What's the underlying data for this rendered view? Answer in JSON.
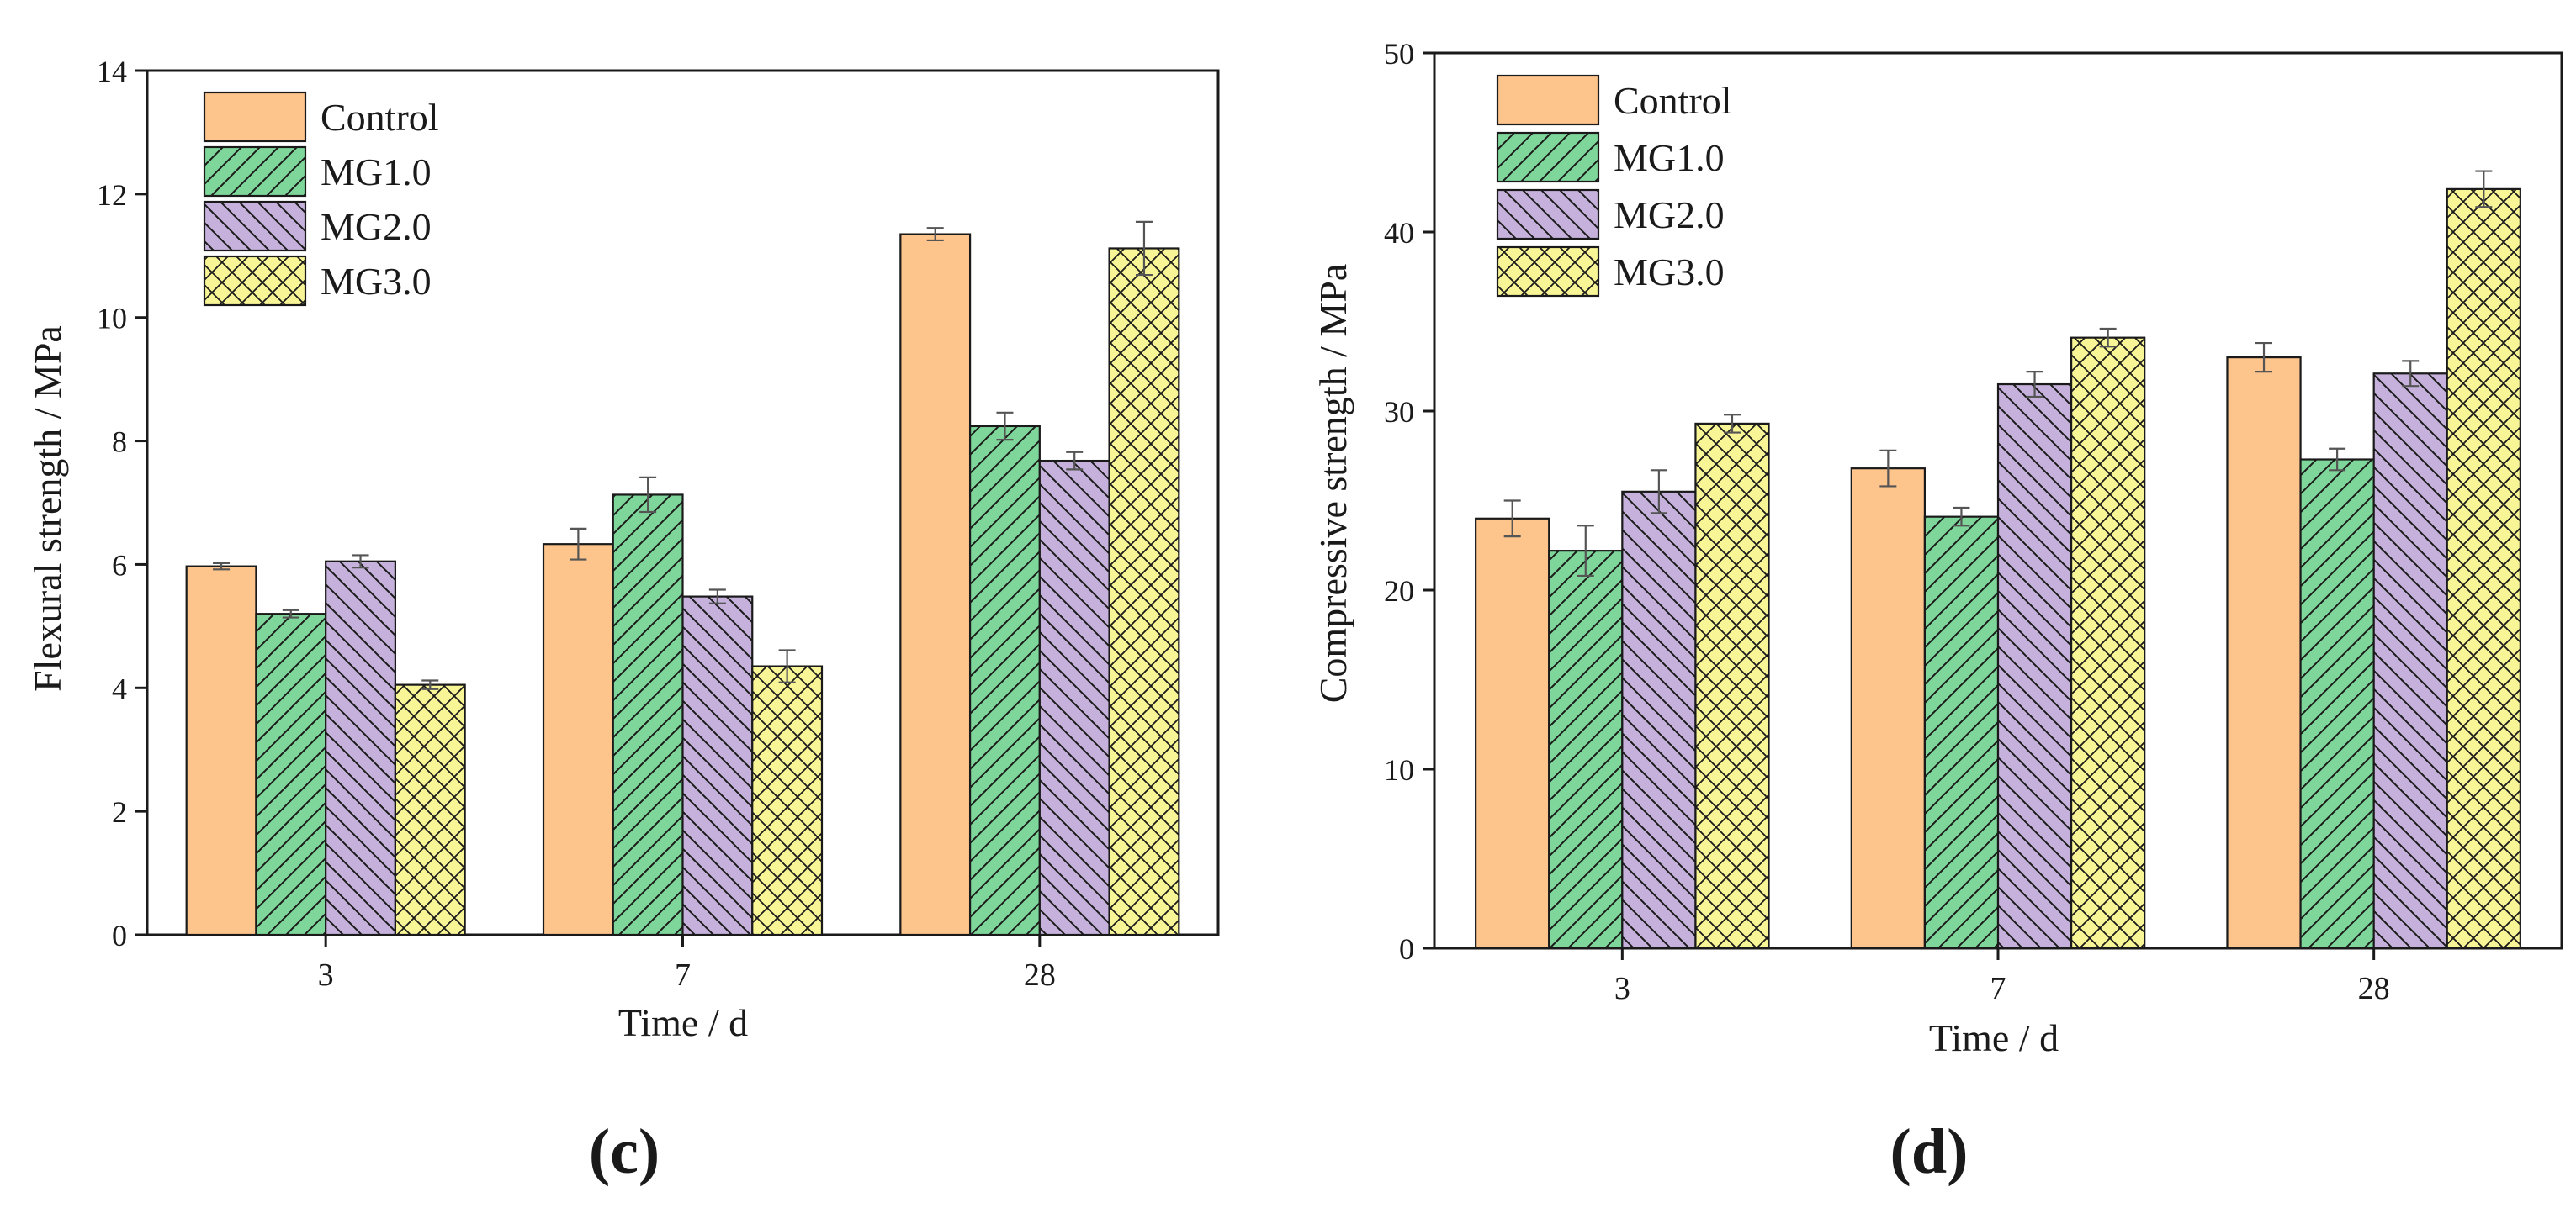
{
  "colors": {
    "Control": "#FDC48C",
    "MG1.0": "#7ED69A",
    "MG2.0": "#C5B1DB",
    "MG3.0": "#F8F596",
    "axis": "#1a1a1a",
    "errorbar": "#555555"
  },
  "chart_data": [
    {
      "type": "bar",
      "panel_label": "(c)",
      "title": "",
      "xlabel": "Time / d",
      "ylabel": "Flexural strength / MPa",
      "categories": [
        "3",
        "7",
        "28"
      ],
      "ylim": [
        0,
        14
      ],
      "yticks": [
        0,
        2,
        4,
        6,
        8,
        10,
        12,
        14
      ],
      "legend_position": "top-left",
      "series": [
        {
          "name": "Control",
          "pattern": "solid",
          "values": [
            5.97,
            6.33,
            11.35
          ],
          "errors": [
            0.05,
            0.25,
            0.1
          ]
        },
        {
          "name": "MG1.0",
          "pattern": "diag-right",
          "values": [
            5.2,
            7.13,
            8.24
          ],
          "errors": [
            0.06,
            0.28,
            0.22
          ]
        },
        {
          "name": "MG2.0",
          "pattern": "diag-left",
          "values": [
            6.05,
            5.48,
            7.68
          ],
          "errors": [
            0.1,
            0.11,
            0.14
          ]
        },
        {
          "name": "MG3.0",
          "pattern": "crosshatch",
          "values": [
            4.05,
            4.35,
            11.12
          ],
          "errors": [
            0.07,
            0.26,
            0.43
          ]
        }
      ]
    },
    {
      "type": "bar",
      "panel_label": "(d)",
      "title": "",
      "xlabel": "Time / d",
      "ylabel": "Compressive strength / MPa",
      "categories": [
        "3",
        "7",
        "28"
      ],
      "ylim": [
        0,
        50
      ],
      "yticks": [
        0,
        10,
        20,
        30,
        40,
        50
      ],
      "legend_position": "top-left",
      "series": [
        {
          "name": "Control",
          "pattern": "solid",
          "values": [
            24.0,
            26.8,
            33.0
          ],
          "errors": [
            1.0,
            1.0,
            0.8
          ]
        },
        {
          "name": "MG1.0",
          "pattern": "diag-right",
          "values": [
            22.2,
            24.1,
            27.3
          ],
          "errors": [
            1.4,
            0.5,
            0.6
          ]
        },
        {
          "name": "MG2.0",
          "pattern": "diag-left",
          "values": [
            25.5,
            31.5,
            32.1
          ],
          "errors": [
            1.2,
            0.7,
            0.7
          ]
        },
        {
          "name": "MG3.0",
          "pattern": "crosshatch",
          "values": [
            29.3,
            34.1,
            42.4
          ],
          "errors": [
            0.5,
            0.5,
            1.0
          ]
        }
      ]
    }
  ]
}
